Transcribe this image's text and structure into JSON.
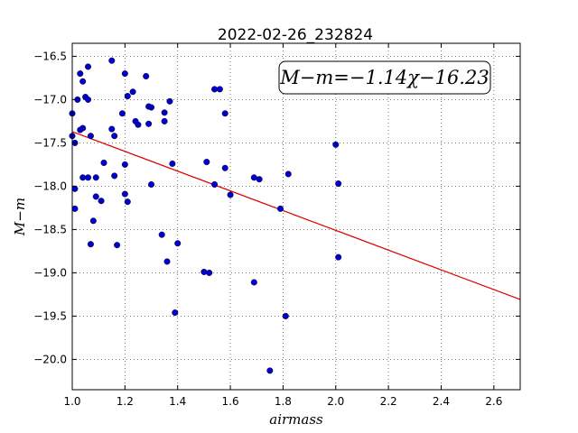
{
  "chart_data": {
    "type": "scatter",
    "title": "2022-02-26_232824",
    "xlabel": "airmass",
    "ylabel": "M−m",
    "xlim": [
      1.0,
      2.7
    ],
    "ylim": [
      -16.35,
      -20.35
    ],
    "y_inverted": true,
    "grid": true,
    "x_ticks": [
      1.0,
      1.2,
      1.4,
      1.6,
      1.8,
      2.0,
      2.2,
      2.4,
      2.6
    ],
    "x_tick_labels": [
      "1.0",
      "1.2",
      "1.4",
      "1.6",
      "1.8",
      "2.0",
      "2.2",
      "2.4",
      "2.6"
    ],
    "y_ticks": [
      -16.5,
      -17.0,
      -17.5,
      -18.0,
      -18.5,
      -19.0,
      -19.5,
      -20.0
    ],
    "y_tick_labels": [
      "−16.5",
      "−17.0",
      "−17.5",
      "−18.0",
      "−18.5",
      "−19.0",
      "−19.5",
      "−20.0"
    ],
    "annotation": "M−m=−1.14χ−16.23",
    "annotation_position": "top-right",
    "fit": {
      "slope": -1.14,
      "intercept": -16.23,
      "color": "#dd0000"
    },
    "point_color": "#0000cc",
    "points": [
      [
        1.0,
        -17.16
      ],
      [
        1.0,
        -17.42
      ],
      [
        1.01,
        -17.5
      ],
      [
        1.01,
        -18.03
      ],
      [
        1.01,
        -18.26
      ],
      [
        1.02,
        -17.0
      ],
      [
        1.03,
        -16.7
      ],
      [
        1.03,
        -17.35
      ],
      [
        1.04,
        -17.33
      ],
      [
        1.04,
        -17.9
      ],
      [
        1.04,
        -16.79
      ],
      [
        1.05,
        -16.97
      ],
      [
        1.06,
        -17.0
      ],
      [
        1.06,
        -17.9
      ],
      [
        1.06,
        -16.62
      ],
      [
        1.07,
        -17.42
      ],
      [
        1.07,
        -18.67
      ],
      [
        1.08,
        -18.4
      ],
      [
        1.09,
        -17.9
      ],
      [
        1.09,
        -18.12
      ],
      [
        1.11,
        -18.17
      ],
      [
        1.12,
        -17.73
      ],
      [
        1.15,
        -16.55
      ],
      [
        1.15,
        -17.34
      ],
      [
        1.16,
        -17.88
      ],
      [
        1.16,
        -17.42
      ],
      [
        1.17,
        -18.68
      ],
      [
        1.19,
        -17.16
      ],
      [
        1.2,
        -16.7
      ],
      [
        1.2,
        -17.75
      ],
      [
        1.2,
        -18.09
      ],
      [
        1.21,
        -16.96
      ],
      [
        1.21,
        -18.18
      ],
      [
        1.23,
        -16.91
      ],
      [
        1.24,
        -17.25
      ],
      [
        1.25,
        -17.29
      ],
      [
        1.28,
        -16.73
      ],
      [
        1.29,
        -17.08
      ],
      [
        1.29,
        -17.28
      ],
      [
        1.3,
        -17.09
      ],
      [
        1.3,
        -17.98
      ],
      [
        1.34,
        -18.56
      ],
      [
        1.35,
        -17.15
      ],
      [
        1.35,
        -17.25
      ],
      [
        1.36,
        -18.87
      ],
      [
        1.37,
        -17.02
      ],
      [
        1.38,
        -17.74
      ],
      [
        1.39,
        -19.46
      ],
      [
        1.4,
        -18.66
      ],
      [
        1.5,
        -18.99
      ],
      [
        1.51,
        -17.72
      ],
      [
        1.52,
        -19.0
      ],
      [
        1.54,
        -16.88
      ],
      [
        1.54,
        -17.98
      ],
      [
        1.56,
        -16.88
      ],
      [
        1.58,
        -17.79
      ],
      [
        1.58,
        -17.16
      ],
      [
        1.6,
        -18.1
      ],
      [
        1.69,
        -19.11
      ],
      [
        1.69,
        -17.9
      ],
      [
        1.71,
        -17.92
      ],
      [
        1.75,
        -20.13
      ],
      [
        1.79,
        -18.26
      ],
      [
        1.81,
        -19.5
      ],
      [
        1.82,
        -17.86
      ],
      [
        2.0,
        -17.52
      ],
      [
        2.01,
        -17.97
      ],
      [
        2.01,
        -18.82
      ]
    ]
  }
}
